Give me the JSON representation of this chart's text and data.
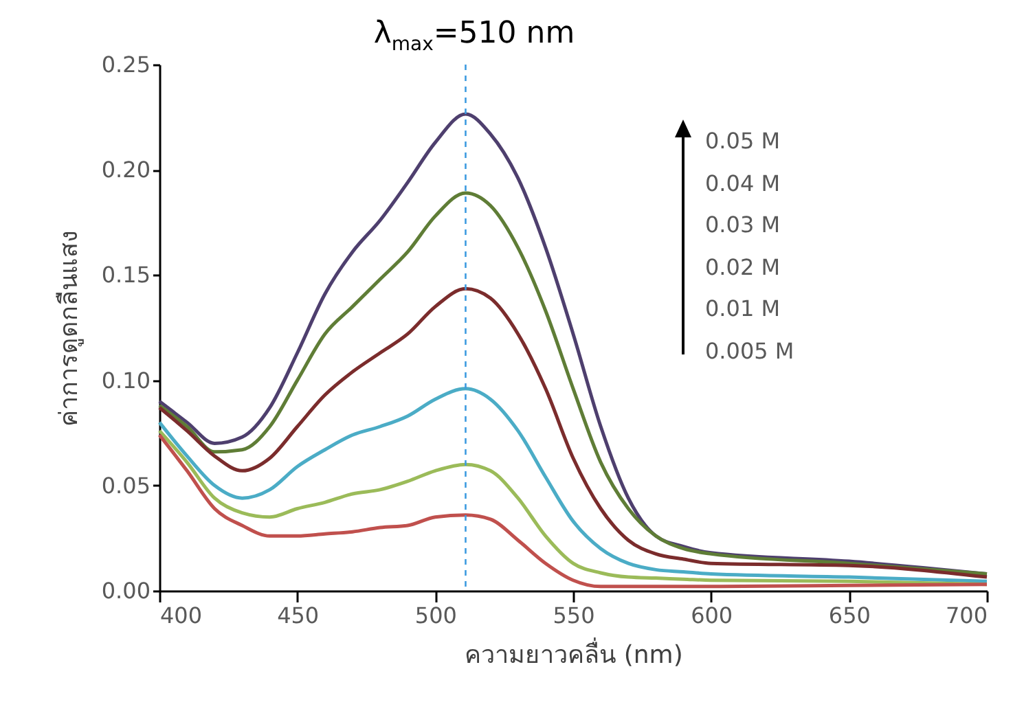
{
  "chart_data": {
    "type": "line",
    "title": "λ$_{max}$=510 nm",
    "xlabel": "ความยาวคลื่น (nm)",
    "ylabel": "ค่าการดูดกลืนแสง",
    "x": [
      400,
      410,
      420,
      430,
      440,
      450,
      460,
      470,
      480,
      490,
      500,
      511,
      520,
      530,
      540,
      550,
      560,
      570,
      580,
      590,
      600,
      650,
      700
    ],
    "series": [
      {
        "color": "#4e3f6e",
        "values": [
          0.09,
          0.08,
          0.07,
          0.073,
          0.087,
          0.113,
          0.141,
          0.161,
          0.176,
          0.194,
          0.213,
          0.2265,
          0.217,
          0.196,
          0.163,
          0.122,
          0.078,
          0.044,
          0.026,
          0.021,
          0.018,
          0.014,
          0.008
        ]
      },
      {
        "color": "#5f7d36",
        "values": [
          0.088,
          0.078,
          0.066,
          0.067,
          0.078,
          0.1,
          0.122,
          0.135,
          0.148,
          0.161,
          0.178,
          0.189,
          0.183,
          0.163,
          0.133,
          0.096,
          0.061,
          0.039,
          0.026,
          0.02,
          0.0175,
          0.013,
          0.008
        ]
      },
      {
        "color": "#7b2c2c",
        "values": [
          0.087,
          0.076,
          0.064,
          0.057,
          0.063,
          0.078,
          0.093,
          0.104,
          0.113,
          0.122,
          0.135,
          0.1435,
          0.139,
          0.122,
          0.096,
          0.063,
          0.039,
          0.024,
          0.0175,
          0.015,
          0.013,
          0.012,
          0.0065
        ]
      },
      {
        "color": "#4bacc6",
        "values": [
          0.08,
          0.064,
          0.05,
          0.044,
          0.048,
          0.059,
          0.067,
          0.074,
          0.078,
          0.083,
          0.091,
          0.096,
          0.091,
          0.076,
          0.054,
          0.033,
          0.02,
          0.013,
          0.01,
          0.009,
          0.008,
          0.0065,
          0.0045
        ]
      },
      {
        "color": "#9bbb59",
        "values": [
          0.076,
          0.061,
          0.044,
          0.037,
          0.035,
          0.039,
          0.042,
          0.046,
          0.048,
          0.052,
          0.057,
          0.06,
          0.057,
          0.044,
          0.026,
          0.013,
          0.0085,
          0.0065,
          0.006,
          0.0055,
          0.005,
          0.0045,
          0.003
        ]
      },
      {
        "color": "#c0504d",
        "values": [
          0.074,
          0.057,
          0.039,
          0.031,
          0.026,
          0.026,
          0.027,
          0.028,
          0.03,
          0.031,
          0.035,
          0.036,
          0.034,
          0.024,
          0.013,
          0.005,
          0.002,
          0.002,
          0.002,
          0.002,
          0.002,
          0.0025,
          0.003
        ]
      }
    ],
    "xlim": [
      400,
      700
    ],
    "xticks": [
      400,
      450,
      500,
      550,
      600,
      650,
      700
    ],
    "ylim": [
      0,
      0.25
    ],
    "yticks": [
      {
        "value": 0,
        "label": "0.00"
      },
      {
        "value": 0.05,
        "label": "0.05"
      },
      {
        "value": 0.1,
        "label": "0.10"
      },
      {
        "value": 0.15,
        "label": "0.15"
      },
      {
        "value": 0.2,
        "label": "0.20"
      },
      {
        "value": 0.25,
        "label": "0.25"
      }
    ],
    "ref_lines": [
      {
        "axis": "x",
        "value": 511,
        "color": "#3d9be0",
        "line_style": "dashed"
      }
    ],
    "annotations": [
      "0.05 M",
      "0.04 M",
      "0.03 M",
      "0.02 M",
      "0.01 M",
      "0.005 M"
    ],
    "grid": false,
    "legend": false,
    "marker": "none",
    "line_style": "solid"
  }
}
